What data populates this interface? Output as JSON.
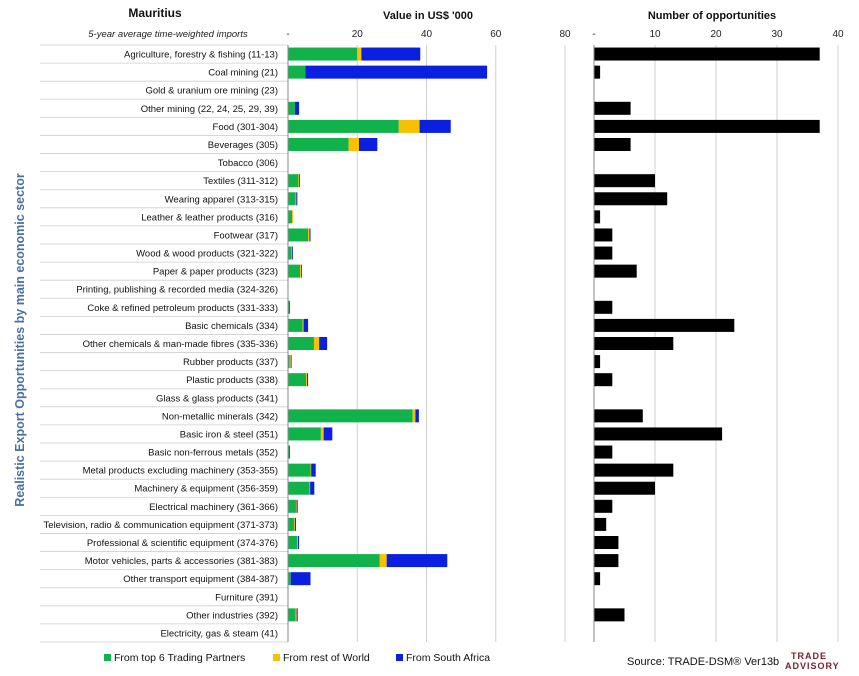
{
  "header": {
    "title": "Mauritius",
    "subtitle": "5-year average time-weighted imports"
  },
  "y_axis_label": "Realistic Export Opportunities by main economic sector",
  "source_text": "Source: TRADE-DSM®  Ver13b",
  "logo": {
    "line1": "TRADE",
    "line2": "ADVISORY"
  },
  "colors": {
    "top6": "#12b24b",
    "row": "#f7c000",
    "sa": "#0a1fe0",
    "opps": "#000000",
    "grid": "#d0d0d0"
  },
  "chart_data": [
    {
      "type": "bar",
      "orientation": "horizontal",
      "stacked": true,
      "title": "Value in US$ '000",
      "xlim": [
        0,
        80
      ],
      "xticks": [
        "-",
        "20",
        "40",
        "60",
        "80"
      ],
      "grid": true,
      "legend_position": "bottom",
      "categories": [
        "Agriculture, forestry & fishing (11-13)",
        "Coal mining (21)",
        "Gold & uranium ore mining (23)",
        "Other mining (22, 24, 25, 29, 39)",
        "Food (301-304)",
        "Beverages (305)",
        "Tobacco (306)",
        "Textiles (311-312)",
        "Wearing apparel (313-315)",
        "Leather & leather products (316)",
        "Footwear (317)",
        "Wood & wood products (321-322)",
        "Paper & paper products (323)",
        "Printing, publishing & recorded media (324-326)",
        "Coke & refined petroleum products (331-333)",
        "Basic chemicals (334)",
        "Other chemicals & man-made fibres (335-336)",
        "Rubber products (337)",
        "Plastic products (338)",
        "Glass & glass products (341)",
        "Non-metallic minerals (342)",
        "Basic iron & steel (351)",
        "Basic non-ferrous metals (352)",
        "Metal products excluding machinery (353-355)",
        "Machinery & equipment (356-359)",
        "Electrical machinery (361-366)",
        "Television, radio & communication equipment (371-373)",
        "Professional & scientific equipment (374-376)",
        "Motor vehicles, parts & accessories (381-383)",
        "Other transport equipment (384-387)",
        "Furniture (391)",
        "Other industries (392)",
        "Electricity, gas & steam (41)"
      ],
      "series": [
        {
          "name": "From top 6 Trading Partners",
          "color": "#12b24b",
          "values": [
            20,
            5,
            0,
            2,
            32,
            17.5,
            0,
            3,
            2.2,
            1.2,
            5.8,
            1,
            3.5,
            0,
            0.3,
            4.2,
            7.5,
            0.5,
            5.2,
            0,
            36,
            9.5,
            0.3,
            6.5,
            6.2,
            2.3,
            1.8,
            2.7,
            26.5,
            0.8,
            0,
            2.2,
            0
          ]
        },
        {
          "name": "From rest of World",
          "color": "#f7c000",
          "values": [
            1.2,
            0,
            0,
            0,
            6,
            3,
            0,
            0.2,
            0.2,
            0.3,
            0.4,
            0.2,
            0.3,
            0,
            0,
            0.3,
            1.5,
            0.3,
            0.3,
            0,
            0.8,
            0.8,
            0,
            0.2,
            0.2,
            0.2,
            0.2,
            0.2,
            2,
            0,
            0,
            0.3,
            0
          ]
        },
        {
          "name": "From South Africa",
          "color": "#0a1fe0",
          "values": [
            17,
            52.5,
            0,
            1.2,
            9,
            5.3,
            0,
            0.2,
            0.3,
            0,
            0.3,
            0.2,
            0.2,
            0,
            0.2,
            1.3,
            2.3,
            0.2,
            0.3,
            0,
            1,
            2.5,
            0.2,
            1.3,
            1.2,
            0.3,
            0.3,
            0.3,
            17.5,
            5.7,
            0,
            0.3,
            0
          ]
        }
      ]
    },
    {
      "type": "bar",
      "orientation": "horizontal",
      "title": "Number of opportunities",
      "xlim": [
        0,
        40
      ],
      "xticks": [
        "-",
        "10",
        "20",
        "30",
        "40"
      ],
      "grid": true,
      "series": [
        {
          "name": "",
          "color": "#000000",
          "values": [
            37,
            1,
            0,
            6,
            37,
            6,
            0,
            10,
            12,
            1,
            3,
            3,
            7,
            0,
            3,
            23,
            13,
            1,
            3,
            0,
            8,
            21,
            3,
            13,
            10,
            3,
            2,
            4,
            4,
            1,
            0,
            5,
            0
          ]
        }
      ]
    }
  ]
}
